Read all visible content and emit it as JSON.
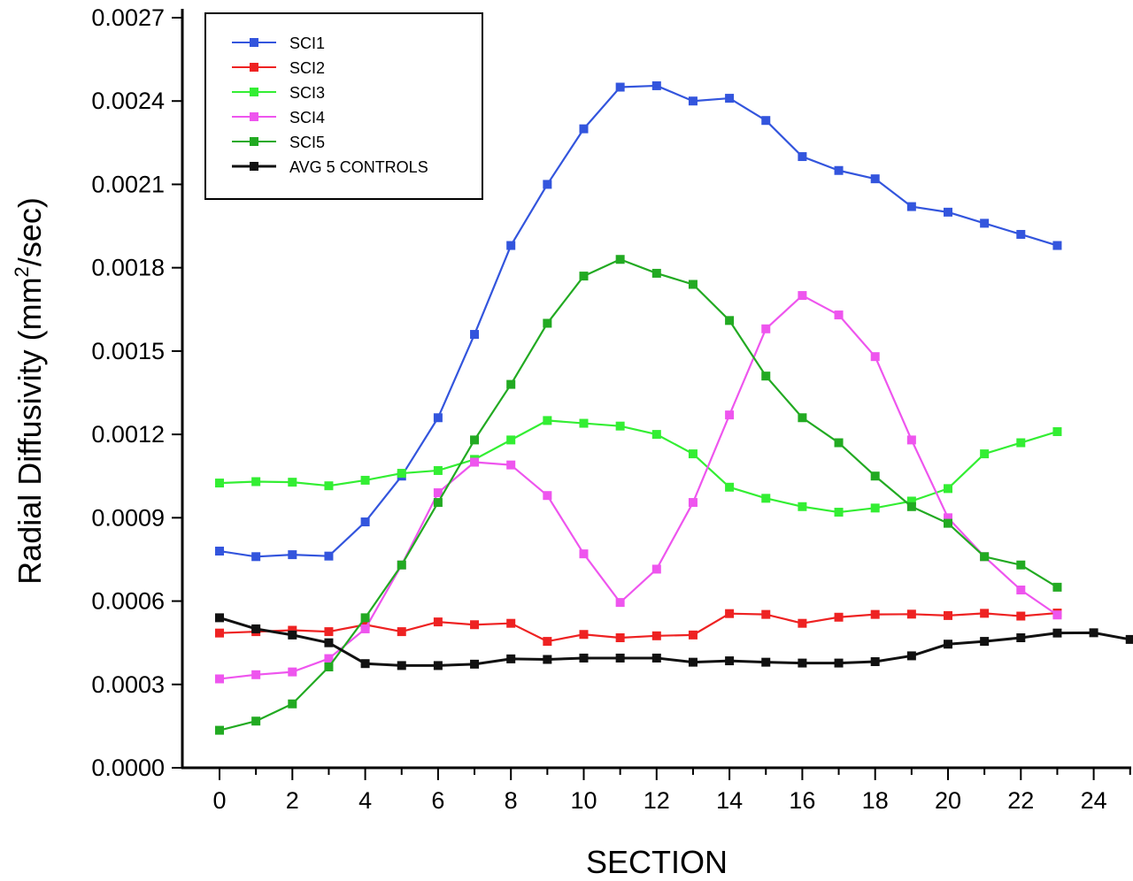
{
  "chart_data": {
    "type": "line",
    "xlabel": "SECTION",
    "ylabel": "Radial Diffusivity (mm",
    "ylabel_sup": "2",
    "ylabel_suffix": "/sec)",
    "xlim": [
      -1,
      25
    ],
    "ylim": [
      0,
      0.0027
    ],
    "xticks": [
      0,
      2,
      4,
      6,
      8,
      10,
      12,
      14,
      16,
      18,
      20,
      22,
      24
    ],
    "yticks": [
      "0.0000",
      "0.0003",
      "0.0006",
      "0.0009",
      "0.0012",
      "0.0015",
      "0.0018",
      "0.0021",
      "0.0024",
      "0.0027"
    ],
    "grid": false,
    "legend_position": "top-left",
    "series": [
      {
        "name": "SCI1",
        "color": "#3355dd",
        "x": [
          0,
          1,
          2,
          3,
          4,
          5,
          6,
          7,
          8,
          9,
          10,
          11,
          12,
          13,
          14,
          15,
          16,
          17,
          18,
          19,
          20,
          21,
          22,
          23
        ],
        "values": [
          0.00078,
          0.00076,
          0.000767,
          0.000762,
          0.000885,
          0.00105,
          0.00126,
          0.00156,
          0.00188,
          0.0021,
          0.0023,
          0.00245,
          0.002455,
          0.0024,
          0.00241,
          0.00233,
          0.0022,
          0.00215,
          0.00212,
          0.00202,
          0.002,
          0.00196,
          0.00192,
          0.00188
        ]
      },
      {
        "name": "SCI2",
        "color": "#ee2222",
        "x": [
          0,
          1,
          2,
          3,
          4,
          5,
          6,
          7,
          8,
          9,
          10,
          11,
          12,
          13,
          14,
          15,
          16,
          17,
          18,
          19,
          20,
          21,
          22,
          23
        ],
        "values": [
          0.000485,
          0.00049,
          0.000495,
          0.00049,
          0.000515,
          0.00049,
          0.000525,
          0.000515,
          0.00052,
          0.000455,
          0.00048,
          0.000468,
          0.000475,
          0.000478,
          0.000555,
          0.000552,
          0.00052,
          0.000542,
          0.000552,
          0.000553,
          0.000548,
          0.000556,
          0.000546,
          0.000557
        ]
      },
      {
        "name": "SCI3",
        "color": "#33ee33",
        "x": [
          0,
          1,
          2,
          3,
          4,
          5,
          6,
          7,
          8,
          9,
          10,
          11,
          12,
          13,
          14,
          15,
          16,
          17,
          18,
          19,
          20,
          21,
          22,
          23
        ],
        "values": [
          0.001025,
          0.00103,
          0.001028,
          0.001015,
          0.001035,
          0.00106,
          0.00107,
          0.00111,
          0.00118,
          0.00125,
          0.00124,
          0.00123,
          0.0012,
          0.00113,
          0.00101,
          0.00097,
          0.00094,
          0.00092,
          0.000935,
          0.00096,
          0.001005,
          0.00113,
          0.00117,
          0.00121
        ]
      },
      {
        "name": "SCI4",
        "color": "#ee55ee",
        "x": [
          0,
          1,
          2,
          3,
          4,
          5,
          6,
          7,
          8,
          9,
          10,
          11,
          12,
          13,
          14,
          15,
          16,
          17,
          18,
          19,
          20,
          21,
          22,
          23
        ],
        "values": [
          0.00032,
          0.000335,
          0.000345,
          0.000393,
          0.0005,
          0.00073,
          0.00099,
          0.0011,
          0.00109,
          0.00098,
          0.00077,
          0.000595,
          0.000715,
          0.000955,
          0.00127,
          0.00158,
          0.0017,
          0.00163,
          0.00148,
          0.00118,
          0.0009,
          0.00076,
          0.00064,
          0.00055
        ]
      },
      {
        "name": "SCI5",
        "color": "#22aa22",
        "x": [
          0,
          1,
          2,
          3,
          4,
          5,
          6,
          7,
          8,
          9,
          10,
          11,
          12,
          13,
          14,
          15,
          16,
          17,
          18,
          19,
          20,
          21,
          22,
          23
        ],
        "values": [
          0.000135,
          0.000168,
          0.00023,
          0.000363,
          0.00054,
          0.00073,
          0.000955,
          0.00118,
          0.00138,
          0.0016,
          0.00177,
          0.00183,
          0.00178,
          0.00174,
          0.00161,
          0.00141,
          0.00126,
          0.00117,
          0.00105,
          0.00094,
          0.00088,
          0.00076,
          0.00073,
          0.00065
        ]
      },
      {
        "name": "AVG 5 CONTROLS",
        "color": "#111111",
        "x": [
          0,
          1,
          2,
          3,
          4,
          5,
          6,
          7,
          8,
          9,
          10,
          11,
          12,
          13,
          14,
          15,
          16,
          17,
          18,
          19,
          20,
          21,
          22,
          23,
          24,
          25
        ],
        "values": [
          0.00054,
          0.0005,
          0.000478,
          0.00045,
          0.000375,
          0.000368,
          0.000368,
          0.000373,
          0.000392,
          0.00039,
          0.000395,
          0.000395,
          0.000395,
          0.00038,
          0.000385,
          0.00038,
          0.000377,
          0.000377,
          0.000382,
          0.000403,
          0.000445,
          0.000455,
          0.000468,
          0.000485,
          0.000486,
          0.000462
        ]
      }
    ]
  }
}
